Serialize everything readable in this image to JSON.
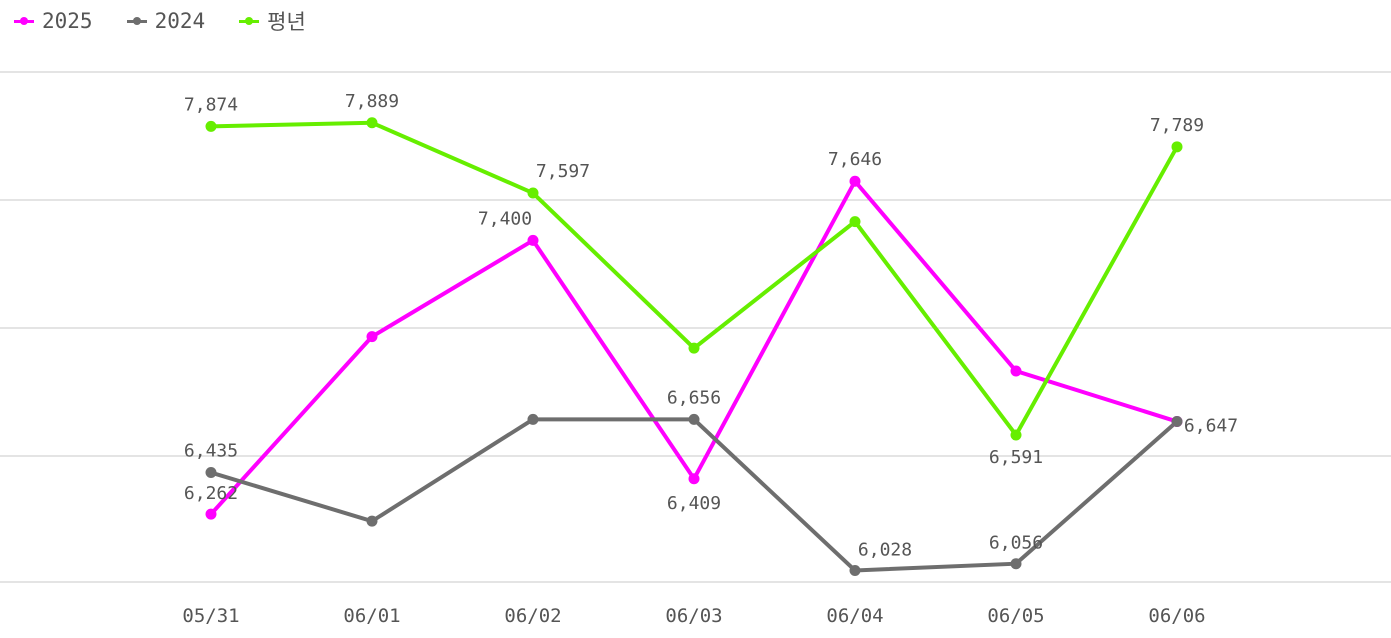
{
  "chart_data": {
    "type": "line",
    "categories": [
      "05/31",
      "06/01",
      "06/02",
      "06/03",
      "06/04",
      "06/05",
      "06/06"
    ],
    "series": [
      {
        "name": "2025",
        "color": "#ff00ff",
        "values": [
          6262,
          7000,
          7400,
          6409,
          7646,
          6857,
          6647
        ],
        "labels": [
          "6,262",
          "",
          "7,400",
          "6,409",
          "7,646",
          "",
          ""
        ]
      },
      {
        "name": "2024",
        "color": "#6e6e6e",
        "values": [
          6435,
          6233,
          6656,
          6656,
          6028,
          6056,
          6647
        ],
        "labels": [
          "6,435",
          "",
          "",
          "6,656",
          "6,028",
          "6,056",
          "6,647"
        ]
      },
      {
        "name": "평년",
        "color": "#66ee00",
        "values": [
          7874,
          7889,
          7597,
          6952,
          7478,
          6591,
          7789
        ],
        "labels": [
          "7,874",
          "7,889",
          "7,597",
          "",
          "",
          "6,591",
          "7,789"
        ]
      }
    ],
    "ylim": [
      5980,
      8100
    ],
    "grid": true,
    "legend_position": "top-left",
    "xlabel": "",
    "ylabel": ""
  }
}
